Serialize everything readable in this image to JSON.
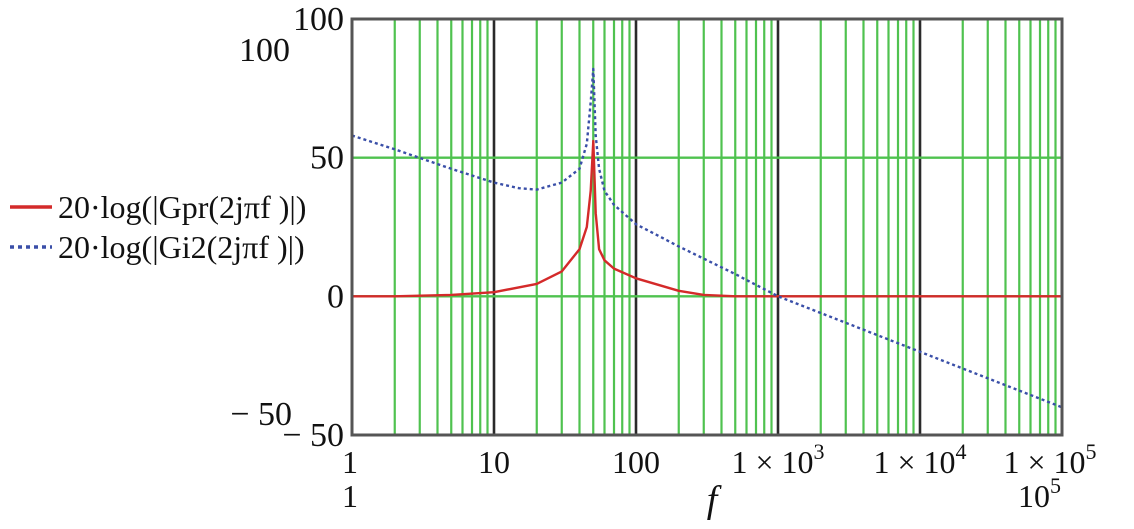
{
  "chart_data": {
    "type": "line",
    "xscale": "log",
    "xlim": [
      1,
      100000
    ],
    "ylim": [
      -50,
      100
    ],
    "grid": true,
    "legend_position": "left",
    "xlabel": "f",
    "axis_limit_labels": {
      "x_min": "1",
      "x_max": "10",
      "x_max_exponent": "5",
      "y_max": "100",
      "y_min": "− 50"
    },
    "x_ticks": [
      {
        "value": 1,
        "label": "1",
        "exp": ""
      },
      {
        "value": 10,
        "label": "10",
        "exp": ""
      },
      {
        "value": 100,
        "label": "100",
        "exp": ""
      },
      {
        "value": 1000,
        "label": "1 × 10",
        "exp": "3"
      },
      {
        "value": 10000,
        "label": "1 × 10",
        "exp": "4"
      },
      {
        "value": 100000,
        "label": "1 × 10",
        "exp": "5"
      }
    ],
    "y_ticks": [
      {
        "value": 100,
        "label": "100"
      },
      {
        "value": 50,
        "label": "50"
      },
      {
        "value": 0,
        "label": "0"
      },
      {
        "value": -50,
        "label": "− 50"
      }
    ],
    "series": [
      {
        "name": "20·log(|Gpr(2jπf )|)",
        "color": "#d42a2a",
        "style": "solid",
        "x": [
          1,
          2,
          5,
          10,
          20,
          30,
          40,
          45,
          48,
          50,
          52,
          55,
          60,
          70,
          100,
          200,
          300,
          500,
          1000,
          100000
        ],
        "y": [
          0,
          0,
          0.5,
          1.5,
          4.5,
          9,
          17,
          25,
          38,
          56,
          30,
          17,
          13,
          10,
          6.5,
          2,
          0.5,
          0,
          0,
          0
        ]
      },
      {
        "name": "20·log(|Gi2(2jπf )|)",
        "color": "#3a4fa8",
        "style": "dotted",
        "x": [
          1,
          2,
          5,
          10,
          15,
          20,
          30,
          40,
          45,
          48,
          50,
          52,
          55,
          60,
          70,
          100,
          200,
          500,
          1000,
          10000,
          100000
        ],
        "y": [
          58,
          53,
          46,
          41,
          39,
          38.5,
          41,
          46,
          55,
          70,
          82,
          58,
          46,
          38,
          33,
          26,
          18,
          8,
          0,
          -20,
          -40
        ]
      }
    ]
  }
}
